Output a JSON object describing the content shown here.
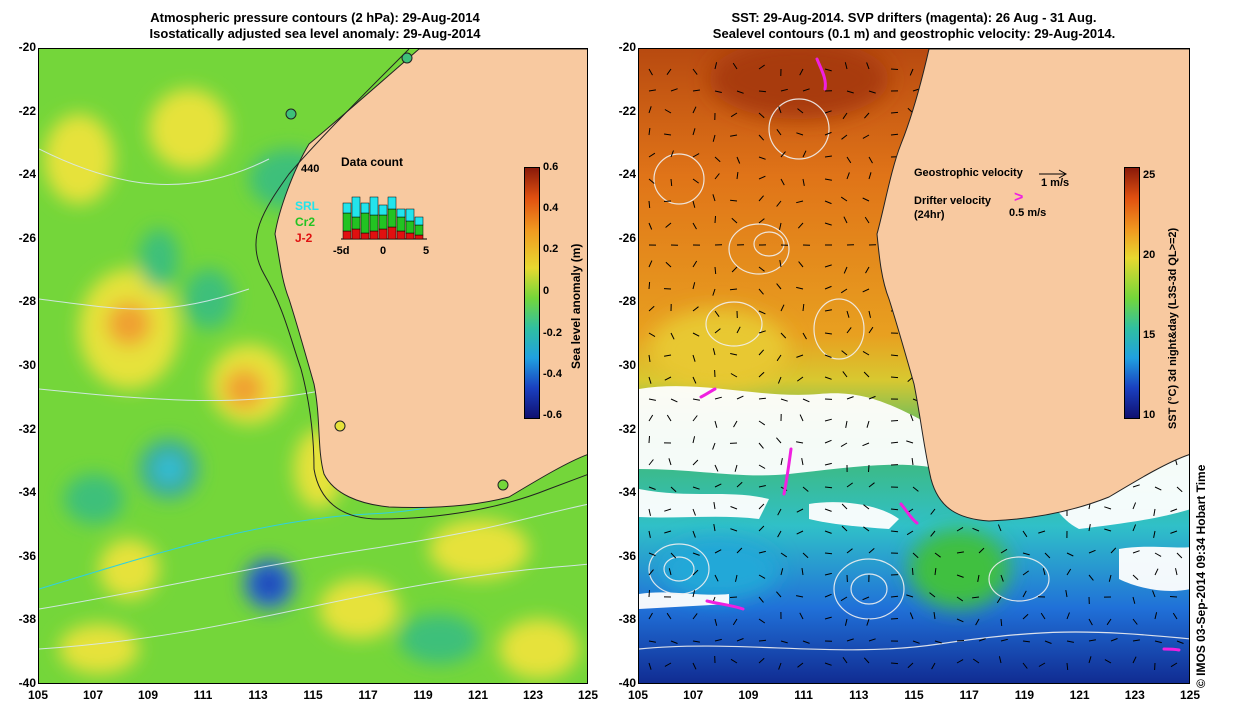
{
  "left_panel": {
    "title_line1": "Atmospheric pressure contours (2 hPa): 29-Aug-2014",
    "title_line2": "Isostatically adjusted sea level anomaly: 29-Aug-2014",
    "histogram": {
      "title": "Data count",
      "max_label": "440",
      "x_ticks": [
        "-5d",
        "0",
        "5"
      ],
      "legend": [
        {
          "name": "SRL",
          "color": "#22e4ec"
        },
        {
          "name": "Cr2",
          "color": "#22c322"
        },
        {
          "name": "J-2",
          "color": "#e01010"
        }
      ]
    },
    "colorbar": {
      "label": "Sea level anomaly (m)",
      "ticks": [
        "0.6",
        "0.4",
        "0.2",
        "0",
        "-0.2",
        "-0.4",
        "-0.6"
      ]
    }
  },
  "right_panel": {
    "title_line1": "SST: 29-Aug-2014. SVP drifters (magenta): 26 Aug - 31 Aug.",
    "title_line2": "Sealevel contours (0.1 m) and geostrophic velocity: 29-Aug-2014.",
    "legend": {
      "geostrophic_label": "Geostrophic velocity",
      "geostrophic_value": "1 m/s",
      "drifter_label": "Drifter velocity",
      "drifter_sub": "(24hr)",
      "drifter_value": "0.5 m/s"
    },
    "colorbar": {
      "label": "SST (°C) 3d night&day (L3S-3d QL>=2)",
      "ticks": [
        "25",
        "20",
        "15",
        "10"
      ]
    }
  },
  "axes": {
    "y_ticks": [
      "-20",
      "-22",
      "-24",
      "-26",
      "-28",
      "-30",
      "-32",
      "-34",
      "-36",
      "-38",
      "-40"
    ],
    "x_ticks": [
      "105",
      "107",
      "109",
      "111",
      "113",
      "115",
      "117",
      "119",
      "121",
      "123",
      "125"
    ]
  },
  "credit": "© IMOS 03-Sep-2014 09:34 Hobart Time",
  "colors": {
    "land": "#f8c9a0",
    "ocean_green": "#6ad43a",
    "drifter_magenta": "#f020e0"
  }
}
